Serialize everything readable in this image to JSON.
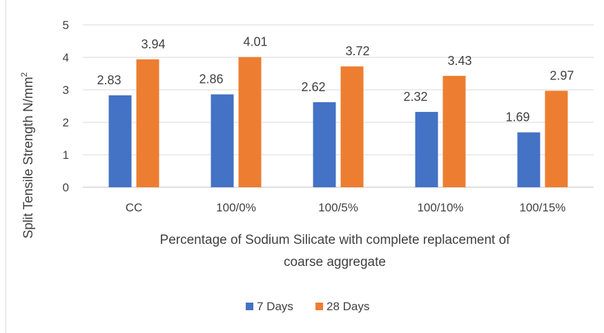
{
  "chart_data": {
    "type": "bar",
    "categories": [
      "CC",
      "100/0%",
      "100/5%",
      "100/10%",
      "100/15%"
    ],
    "series": [
      {
        "name": "7 Days",
        "color": "#4472c4",
        "values": [
          2.83,
          2.86,
          2.62,
          2.32,
          1.69
        ],
        "labels": [
          "2.83",
          "2.86",
          "2.62",
          "2.32",
          "1.69"
        ]
      },
      {
        "name": "28 Days",
        "color": "#ed7d31",
        "values": [
          3.94,
          4.01,
          3.72,
          3.43,
          2.97
        ],
        "labels": [
          "3.94",
          "4.01",
          "3.72",
          "3.43",
          "2.97"
        ]
      }
    ],
    "ylim": [
      0,
      5
    ],
    "yticks": [
      "0",
      "1",
      "2",
      "3",
      "4",
      "5"
    ],
    "ylabel": "Split Tensile Strength N/mm",
    "ylabel_sup": "2",
    "xlabel_line1": "Percentage of Sodium Silicate with complete replacement of",
    "xlabel_line2": "coarse aggregate",
    "grid": true,
    "legend_position": "bottom"
  }
}
